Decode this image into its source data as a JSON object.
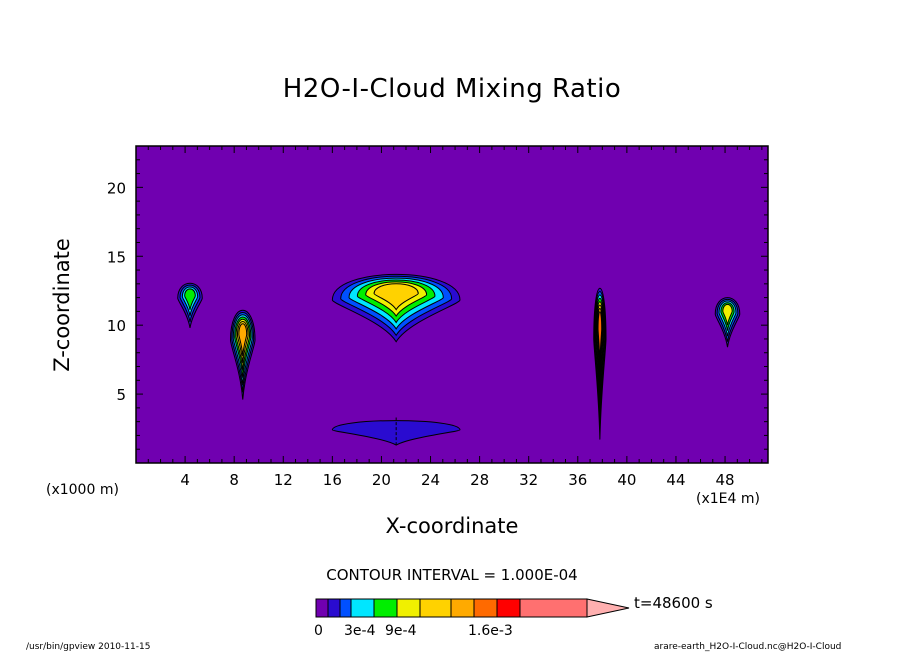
{
  "title": "H2O-I-Cloud Mixing Ratio",
  "chart_data": {
    "type": "contour",
    "title": "H2O-I-Cloud Mixing Ratio",
    "xlabel": "X-coordinate",
    "ylabel": "Z-coordinate",
    "x_unit_left": "(x1000 m)",
    "x_unit_right": "(x1E4 m)",
    "xlim": [
      0,
      51.5
    ],
    "ylim": [
      0,
      23
    ],
    "xticks": [
      4,
      8,
      12,
      16,
      20,
      24,
      28,
      32,
      36,
      40,
      44,
      48
    ],
    "yticks": [
      5,
      10,
      15,
      20
    ],
    "contour_interval_text": "CONTOUR INTERVAL = 1.000E-04",
    "colorbar": {
      "colors": [
        "#7000b0",
        "#2a0bd0",
        "#0050ff",
        "#00e6ff",
        "#00ee00",
        "#f0f000",
        "#ffd200",
        "#ffaa00",
        "#ff6a00",
        "#ff0000",
        "#ff7070",
        "#ffb0b0"
      ],
      "tick_labels": [
        "0",
        "3e-4",
        "9e-4",
        "1.6e-3"
      ],
      "time_label": "t=48600 s"
    },
    "cloud_cells": [
      {
        "x_center": 4.4,
        "z_base": 9.8,
        "z_top": 13.4,
        "max_level_index": 3
      },
      {
        "x_center": 8.7,
        "z_base": 4.6,
        "z_top": 11.8,
        "max_level_index": 6
      },
      {
        "x_center": 21.2,
        "z_base": 8.8,
        "z_top": 14.3,
        "max_level_index": 5
      },
      {
        "x_center": 37.8,
        "z_base": 1.7,
        "z_top": 13.9,
        "max_level_index": 7
      },
      {
        "x_center": 48.2,
        "z_base": 8.4,
        "z_top": 12.4,
        "max_level_index": 4
      },
      {
        "x_center": 21.2,
        "z_base": 1.3,
        "z_top": 3.3,
        "max_level_index": 0
      }
    ]
  },
  "footer": {
    "left": "/usr/bin/gpview   2010-11-15",
    "right": "arare-earth_H2O-I-Cloud.nc@H2O-I-Cloud"
  }
}
